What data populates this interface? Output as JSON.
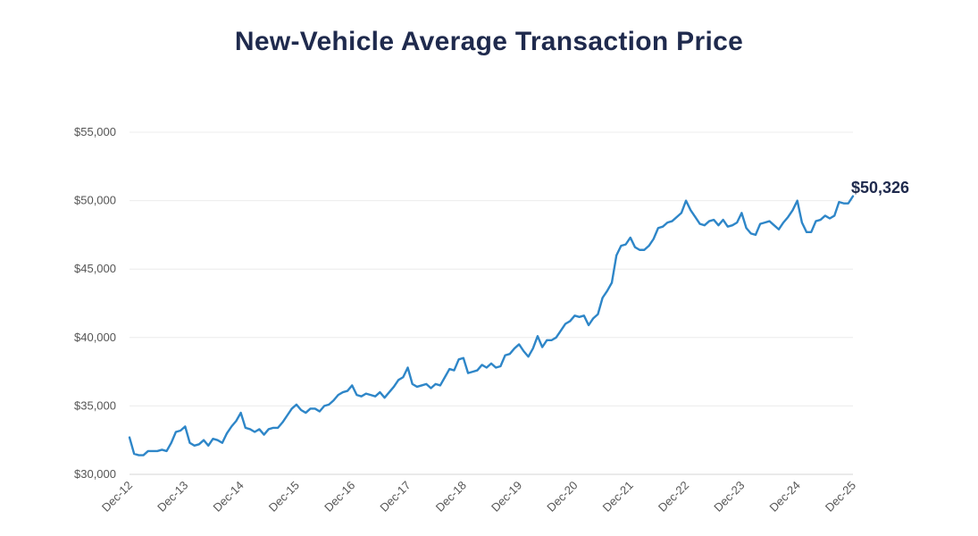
{
  "chart_data": {
    "type": "line",
    "title": "New-Vehicle Average Transaction Price",
    "xlabel": "",
    "ylabel": "",
    "ylim": [
      30000,
      55000
    ],
    "yticks": [
      30000,
      35000,
      40000,
      45000,
      50000,
      55000
    ],
    "ytick_labels": [
      "$30,000",
      "$35,000",
      "$40,000",
      "$45,000",
      "$50,000",
      "$55,000"
    ],
    "xtick_labels": [
      "Dec-12",
      "Dec-13",
      "Dec-14",
      "Dec-15",
      "Dec-16",
      "Dec-17",
      "Dec-18",
      "Dec-19",
      "Dec-20",
      "Dec-21",
      "Dec-22",
      "Dec-23",
      "Dec-24",
      "Dec-25"
    ],
    "grid": true,
    "line_color": "#2e86c8",
    "end_label": "$50,326",
    "series": [
      {
        "name": "Average Transaction Price",
        "values": [
          32700,
          31500,
          31400,
          31400,
          31700,
          31700,
          31700,
          31800,
          31700,
          32300,
          33100,
          33200,
          33500,
          32300,
          32100,
          32200,
          32500,
          32100,
          32600,
          32500,
          32300,
          33000,
          33500,
          33900,
          34500,
          33400,
          33300,
          33100,
          33300,
          32900,
          33300,
          33400,
          33400,
          33800,
          34300,
          34800,
          35100,
          34700,
          34500,
          34800,
          34800,
          34600,
          35000,
          35100,
          35400,
          35800,
          36000,
          36100,
          36500,
          35800,
          35700,
          35900,
          35800,
          35700,
          36000,
          35600,
          36000,
          36400,
          36900,
          37100,
          37800,
          36600,
          36400,
          36500,
          36600,
          36300,
          36600,
          36500,
          37100,
          37700,
          37600,
          38400,
          38500,
          37400,
          37500,
          37600,
          38000,
          37800,
          38100,
          37800,
          37900,
          38700,
          38800,
          39200,
          39500,
          39000,
          38600,
          39200,
          40100,
          39300,
          39800,
          39800,
          40000,
          40500,
          41000,
          41200,
          41600,
          41500,
          41600,
          40900,
          41400,
          41700,
          42900,
          43400,
          44000,
          46000,
          46700,
          46800,
          47300,
          46600,
          46400,
          46400,
          46700,
          47200,
          48000,
          48100,
          48400,
          48500,
          48800,
          49100,
          50000,
          49300,
          48800,
          48300,
          48200,
          48500,
          48600,
          48200,
          48600,
          48100,
          48200,
          48400,
          49100,
          48000,
          47600,
          47500,
          48300,
          48400,
          48500,
          48200,
          47900,
          48400,
          48800,
          49300,
          50000,
          48400,
          47700,
          47700,
          48500,
          48600,
          48900,
          48700,
          48900,
          49900,
          49800,
          49800,
          50326
        ]
      }
    ]
  }
}
